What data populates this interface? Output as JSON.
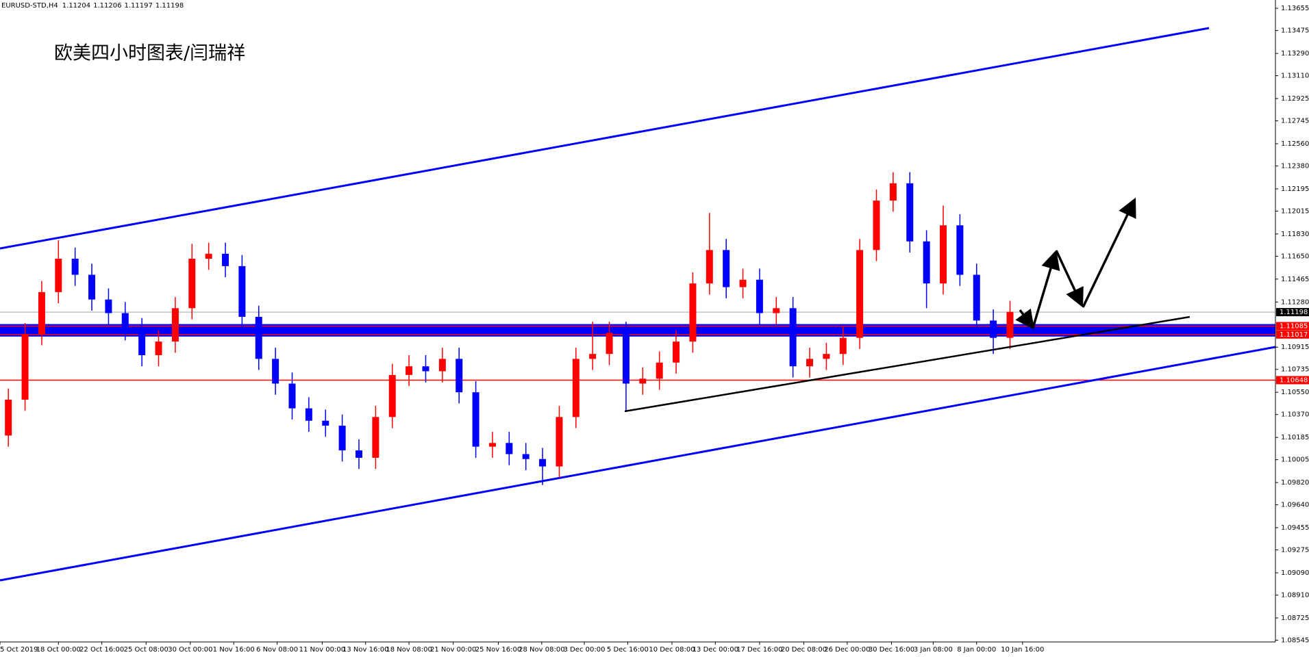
{
  "chart_data": {
    "type": "candlestick",
    "header": "EURUSD-STD,H4",
    "header_values": [
      1.11204,
      1.11206,
      1.11197,
      1.11198
    ],
    "title": "欧美四小时图表/闫瑞祥",
    "open": [
      1.102,
      1.1049,
      1.1102,
      1.1136,
      1.1163,
      1.115,
      1.113,
      1.1119,
      1.1106,
      1.1085,
      1.1096,
      1.1123,
      1.1163,
      1.1167,
      1.1157,
      1.1116,
      1.1082,
      1.1062,
      1.1042,
      1.1032,
      1.1028,
      1.1008,
      1.1002,
      1.1035,
      1.1069,
      1.1076,
      1.1072,
      1.1082,
      1.1055,
      1.1011,
      1.1014,
      1.1005,
      1.1001,
      1.0995,
      1.1035,
      1.1082,
      1.1086,
      1.1103,
      1.1062,
      1.1066,
      1.1079,
      1.1096,
      1.1143,
      1.117,
      1.114,
      1.1146,
      1.1119,
      1.1123,
      1.1076,
      1.1082,
      1.1086,
      1.1099,
      1.117,
      1.121,
      1.1224,
      1.1177,
      1.1143,
      1.119,
      1.115,
      1.1113,
      1.1099
    ],
    "high": [
      1.1058,
      1.1111,
      1.1145,
      1.1178,
      1.1172,
      1.1159,
      1.1139,
      1.1128,
      1.1115,
      1.1105,
      1.1132,
      1.1175,
      1.1176,
      1.1176,
      1.1166,
      1.1125,
      1.1091,
      1.1071,
      1.1051,
      1.1041,
      1.1037,
      1.1017,
      1.1044,
      1.1078,
      1.1085,
      1.1085,
      1.1091,
      1.1091,
      1.1064,
      1.1023,
      1.1023,
      1.1014,
      1.101,
      1.1044,
      1.1091,
      1.1112,
      1.1112,
      1.1112,
      1.1075,
      1.1088,
      1.1105,
      1.1152,
      1.12,
      1.1179,
      1.1155,
      1.1155,
      1.1132,
      1.1132,
      1.1091,
      1.1095,
      1.1108,
      1.1179,
      1.1219,
      1.1233,
      1.1233,
      1.1186,
      1.1206,
      1.1199,
      1.1159,
      1.1122,
      1.1129
    ],
    "low": [
      1.1011,
      1.104,
      1.1093,
      1.1127,
      1.1141,
      1.1121,
      1.111,
      1.1097,
      1.1076,
      1.1076,
      1.1087,
      1.1114,
      1.1154,
      1.1148,
      1.1107,
      1.1073,
      1.1053,
      1.1033,
      1.1023,
      1.1019,
      1.0999,
      1.0993,
      1.0993,
      1.1026,
      1.106,
      1.1063,
      1.1063,
      1.1046,
      1.1002,
      1.1002,
      1.0996,
      1.0992,
      1.098,
      1.0986,
      1.1026,
      1.1073,
      1.1077,
      1.104,
      1.1053,
      1.1057,
      1.107,
      1.1087,
      1.1134,
      1.1131,
      1.1131,
      1.111,
      1.111,
      1.1067,
      1.1067,
      1.1073,
      1.1077,
      1.109,
      1.1161,
      1.1201,
      1.1168,
      1.1123,
      1.1134,
      1.1141,
      1.1104,
      1.1086,
      1.109
    ],
    "close": [
      1.1049,
      1.1102,
      1.1136,
      1.1163,
      1.115,
      1.113,
      1.1119,
      1.1106,
      1.1085,
      1.1096,
      1.1123,
      1.1163,
      1.1167,
      1.1157,
      1.1116,
      1.1082,
      1.1062,
      1.1042,
      1.1032,
      1.1028,
      1.1008,
      1.1002,
      1.1035,
      1.1069,
      1.1076,
      1.1072,
      1.1082,
      1.1055,
      1.1011,
      1.1014,
      1.1005,
      1.1001,
      1.0995,
      1.1035,
      1.1082,
      1.1086,
      1.1103,
      1.1062,
      1.1066,
      1.1079,
      1.1096,
      1.1143,
      1.117,
      1.114,
      1.1146,
      1.1119,
      1.1123,
      1.1076,
      1.1082,
      1.1086,
      1.1099,
      1.117,
      1.121,
      1.1224,
      1.1177,
      1.1143,
      1.119,
      1.115,
      1.1113,
      1.1099,
      1.112
    ],
    "up_color": "#ff0000",
    "down_color": "#0000ff",
    "xlim": [
      -0.5,
      75.9
    ],
    "xticks": [
      {
        "value": -0.5,
        "label": "5 Oct 2019"
      },
      {
        "value": 3,
        "label": "18 Oct 00:00"
      },
      {
        "value": 5.6,
        "label": "22 Oct 16:00"
      },
      {
        "value": 8.25,
        "label": "25 Oct 08:00"
      },
      {
        "value": 10.9,
        "label": "30 Oct 00:00"
      },
      {
        "value": 13.5,
        "label": "1 Nov 16:00"
      },
      {
        "value": 16.1,
        "label": "6 Nov 08:00"
      },
      {
        "value": 18.8,
        "label": "11 Nov 00:00"
      },
      {
        "value": 21.4,
        "label": "13 Nov 16:00"
      },
      {
        "value": 24,
        "label": "18 Nov 08:00"
      },
      {
        "value": 26.65,
        "label": "21 Nov 00:00"
      },
      {
        "value": 29.35,
        "label": "25 Nov 16:00"
      },
      {
        "value": 31.95,
        "label": "28 Nov 08:00"
      },
      {
        "value": 34.5,
        "label": "3 Dec 00:00"
      },
      {
        "value": 37.1,
        "label": "5 Dec 16:00"
      },
      {
        "value": 39.75,
        "label": "10 Dec 08:00"
      },
      {
        "value": 42.35,
        "label": "13 Dec 00:00"
      },
      {
        "value": 45,
        "label": "17 Dec 16:00"
      },
      {
        "value": 47.65,
        "label": "20 Dec 08:00"
      },
      {
        "value": 50.25,
        "label": "26 Dec 00:00"
      },
      {
        "value": 52.9,
        "label": "30 Dec 16:00"
      },
      {
        "value": 55.4,
        "label": "3 Jan 08:00"
      },
      {
        "value": 58,
        "label": "8 Jan 00:00"
      },
      {
        "value": 60.75,
        "label": "10 Jan 16:00"
      }
    ],
    "ylim": [
      1.08531,
      1.13722
    ],
    "yticks": [
      1.13655,
      1.13475,
      {
        "value": 1.1329,
        "label": "1.13290"
      },
      {
        "value": 1.1311,
        "label": "1.13110"
      },
      1.12925,
      1.12745,
      {
        "value": 1.1256,
        "label": "1.12560"
      },
      {
        "value": 1.1238,
        "label": "1.12380"
      },
      1.12195,
      1.12015,
      {
        "value": 1.1183,
        "label": "1.11830"
      },
      {
        "value": 1.1165,
        "label": "1.11650"
      },
      1.11465,
      {
        "value": 1.1128,
        "label": "1.11280"
      },
      1.10915,
      1.10735,
      {
        "value": 1.1055,
        "label": "1.10550"
      },
      {
        "value": 1.1037,
        "label": "1.10370"
      },
      1.10185,
      1.10005,
      {
        "value": 1.0982,
        "label": "1.09820"
      },
      {
        "value": 1.0964,
        "label": "1.09640"
      },
      1.09455,
      1.09275,
      {
        "value": 1.0909,
        "label": "1.09090"
      },
      {
        "value": 1.0891,
        "label": "1.08910"
      },
      1.08725,
      1.08545
    ],
    "zone_color": "#0000ff",
    "price_lines": [
      {
        "value": 1.11085,
        "color": "#ff0000",
        "label_color": "#ff0000"
      },
      {
        "value": 1.11017,
        "color": "#ff0000",
        "label_color": "#ff0000"
      },
      {
        "value": 1.10648,
        "color": "#ff0000",
        "label_color": "#ff0000"
      },
      {
        "value": 1.11198,
        "color": "#c0c0c0",
        "label_color": "#000000"
      }
    ]
  }
}
